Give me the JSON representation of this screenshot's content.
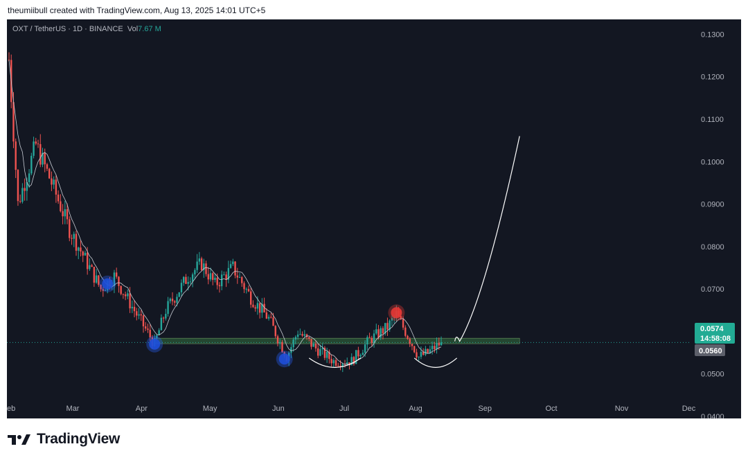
{
  "header": {
    "text": "theumiibull created with TradingView.com, Aug 13, 2025 14:01 UTC+5"
  },
  "legend": {
    "symbol": "OXT / TetherUS · 1D · BINANCE",
    "vol_label": "Vol",
    "vol_value": "7.67 M"
  },
  "footer": {
    "brand": "TradingView"
  },
  "colors": {
    "bg": "#131722",
    "up": "#26a69a",
    "down": "#ef5350",
    "accent": "#22ab94",
    "line": "#ffffff"
  },
  "price_badge": {
    "price": "0.0574",
    "countdown": "14:58:08"
  },
  "support_badge": {
    "price": "0.0560"
  },
  "chart_data": {
    "type": "candlestick",
    "title": "OXT / TetherUS · 1D · BINANCE",
    "ylim": [
      0.0395,
      0.1335
    ],
    "y_ticks": [
      "0.1300",
      "0.1200",
      "0.1100",
      "0.1000",
      "0.0900",
      "0.0800",
      "0.0700",
      "0.0600",
      "0.0500",
      "0.0400"
    ],
    "x_ticks": [
      "eb",
      "Mar",
      "Apr",
      "May",
      "Jun",
      "Jul",
      "Aug",
      "Sep",
      "Oct",
      "Nov",
      "Dec"
    ],
    "grid": false,
    "last_price": 0.0574,
    "dotted_price_line": 0.0574,
    "anchor_prices": [
      {
        "date": "Feb 01",
        "price": 0.124
      },
      {
        "date": "Feb 05",
        "price": 0.09
      },
      {
        "date": "Feb 13",
        "price": 0.104
      },
      {
        "date": "Feb 20",
        "price": 0.095
      },
      {
        "date": "Feb 28",
        "price": 0.084
      },
      {
        "date": "Mar 10",
        "price": 0.074
      },
      {
        "date": "Mar 14",
        "price": 0.07
      },
      {
        "date": "Mar 20",
        "price": 0.073
      },
      {
        "date": "Mar 30",
        "price": 0.064
      },
      {
        "date": "Apr 07",
        "price": 0.057
      },
      {
        "date": "Apr 12",
        "price": 0.065
      },
      {
        "date": "Apr 22",
        "price": 0.073
      },
      {
        "date": "Apr 28",
        "price": 0.076
      },
      {
        "date": "May 04",
        "price": 0.071
      },
      {
        "date": "May 12",
        "price": 0.075
      },
      {
        "date": "May 20",
        "price": 0.068
      },
      {
        "date": "May 28",
        "price": 0.063
      },
      {
        "date": "Jun 05",
        "price": 0.054
      },
      {
        "date": "Jun 10",
        "price": 0.06
      },
      {
        "date": "Jun 18",
        "price": 0.056
      },
      {
        "date": "Jun 26",
        "price": 0.053
      },
      {
        "date": "Jul 04",
        "price": 0.053
      },
      {
        "date": "Jul 12",
        "price": 0.058
      },
      {
        "date": "Jul 20",
        "price": 0.061
      },
      {
        "date": "Jul 24",
        "price": 0.064
      },
      {
        "date": "Jul 28",
        "price": 0.06
      },
      {
        "date": "Aug 03",
        "price": 0.054
      },
      {
        "date": "Aug 07",
        "price": 0.055
      },
      {
        "date": "Aug 13",
        "price": 0.0574
      }
    ],
    "support_zone": {
      "low": 0.0571,
      "high": 0.0584,
      "from": "Apr 07",
      "to": "Sep 17"
    },
    "markers": [
      {
        "date": "Mar 17",
        "price": 0.0712,
        "color": "blue"
      },
      {
        "date": "Apr 07",
        "price": 0.057,
        "color": "blue"
      },
      {
        "date": "Jun 04",
        "price": 0.0535,
        "color": "blue"
      },
      {
        "date": "Jul 24",
        "price": 0.0644,
        "color": "red"
      }
    ],
    "annotations": [
      {
        "type": "cup",
        "from": "Jun 15",
        "to": "Jul 08",
        "bottom": 0.0516
      },
      {
        "type": "cup",
        "from": "Aug 01",
        "to": "Aug 20",
        "bottom": 0.0516
      },
      {
        "type": "projection",
        "from": "Aug 20",
        "to": "Sep 17",
        "start": 0.058,
        "end": 0.106
      }
    ]
  }
}
